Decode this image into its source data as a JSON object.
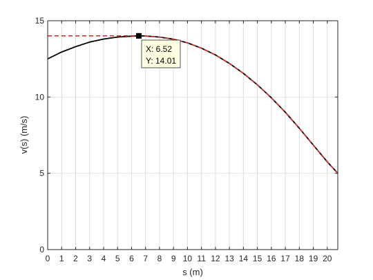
{
  "chart_data": {
    "type": "line",
    "xlabel": "s (m)",
    "ylabel": "v(s) (m/s)",
    "xlim": [
      0,
      20.75
    ],
    "ylim": [
      0,
      15
    ],
    "xticks": [
      0,
      1,
      2,
      3,
      4,
      5,
      6,
      7,
      8,
      9,
      10,
      11,
      12,
      13,
      14,
      15,
      16,
      17,
      18,
      19,
      20
    ],
    "yticks": [
      0,
      5,
      10,
      15
    ],
    "grid": "vertical",
    "series": [
      {
        "style": "solid",
        "color": "#000000",
        "x": [
          0,
          1,
          2,
          3,
          4,
          5,
          6,
          6.52,
          7,
          8,
          9,
          10,
          11,
          12,
          13,
          14,
          15,
          16,
          17,
          18,
          19,
          20,
          20.75
        ],
        "y": [
          12.5,
          12.95,
          13.3,
          13.6,
          13.8,
          13.93,
          13.99,
          14.01,
          14.0,
          13.93,
          13.79,
          13.55,
          13.2,
          12.76,
          12.2,
          11.55,
          10.8,
          9.95,
          9.0,
          7.95,
          6.85,
          5.75,
          5.0
        ]
      },
      {
        "style": "dashed",
        "color": "#e03030",
        "x": [
          0,
          6.52,
          7,
          8,
          9,
          10,
          11,
          12,
          13,
          14,
          15,
          16,
          17,
          18,
          19,
          20,
          20.75
        ],
        "y": [
          14.01,
          14.01,
          14.0,
          13.93,
          13.79,
          13.55,
          13.2,
          12.76,
          12.2,
          11.55,
          10.8,
          9.95,
          9.0,
          7.95,
          6.85,
          5.75,
          5.0
        ]
      }
    ],
    "marker": {
      "x": 6.52,
      "y": 14.01,
      "color": "#000000"
    },
    "datatip": {
      "line1": "X: 6.52",
      "line2": "Y: 14.01",
      "background": "#ffffe1"
    }
  }
}
